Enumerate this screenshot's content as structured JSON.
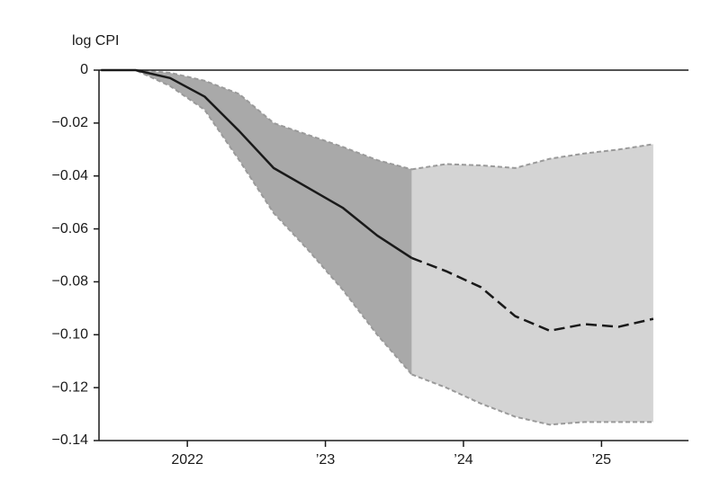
{
  "chart_data": {
    "type": "line",
    "y_label": "log CPI",
    "x": [
      2021.375,
      2021.625,
      2021.875,
      2022.125,
      2022.375,
      2022.625,
      2022.875,
      2023.125,
      2023.375,
      2023.625,
      2023.875,
      2024.125,
      2024.375,
      2024.625,
      2024.875,
      2025.125,
      2025.375
    ],
    "series": [
      {
        "color": "#1a1a1a",
        "dash": false,
        "values": [
          0,
          0,
          -0.003,
          -0.01,
          -0.023,
          -0.037,
          -0.0445,
          -0.052,
          -0.0625,
          -0.071,
          null,
          null,
          null,
          null,
          null,
          null,
          null
        ]
      },
      {
        "color": "#1a1a1a",
        "dash": true,
        "values": [
          null,
          null,
          null,
          null,
          null,
          null,
          null,
          null,
          null,
          -0.071,
          -0.076,
          -0.082,
          -0.093,
          -0.0985,
          -0.096,
          -0.097,
          -0.094
        ]
      }
    ],
    "bands": [
      {
        "color": "#a9a9a9",
        "edge_color": "#9a9a9a",
        "upper": [
          0,
          0,
          -0.001,
          -0.004,
          -0.009,
          -0.02,
          -0.0245,
          -0.029,
          -0.034,
          -0.0375,
          null,
          null,
          null,
          null,
          null,
          null,
          null
        ],
        "lower": [
          0,
          0,
          -0.006,
          -0.015,
          -0.034,
          -0.054,
          -0.068,
          -0.083,
          -0.1,
          -0.115,
          null,
          null,
          null,
          null,
          null,
          null,
          null
        ]
      },
      {
        "color": "#d4d4d4",
        "edge_color": "#9a9a9a",
        "upper": [
          null,
          null,
          null,
          null,
          null,
          null,
          null,
          null,
          null,
          -0.0375,
          -0.0355,
          -0.036,
          -0.037,
          -0.0335,
          -0.0315,
          -0.03,
          -0.028
        ],
        "lower": [
          null,
          null,
          null,
          null,
          null,
          null,
          null,
          null,
          null,
          -0.115,
          -0.12,
          -0.126,
          -0.131,
          -0.134,
          -0.133,
          -0.133,
          -0.133
        ]
      }
    ],
    "xlim": [
      2021.36,
      2025.63
    ],
    "xticks": [
      {
        "value": 2022,
        "label": "2022"
      },
      {
        "value": 2023,
        "label": "’23"
      },
      {
        "value": 2024,
        "label": "’24"
      },
      {
        "value": 2025,
        "label": "’25"
      }
    ],
    "ylim": [
      -0.14,
      0
    ],
    "yticks": [
      0,
      {
        "value": -0.02,
        "label": "−0.02"
      },
      {
        "value": -0.04,
        "label": "−0.04"
      },
      {
        "value": -0.06,
        "label": "−0.06"
      },
      {
        "value": -0.08,
        "label": "−0.08"
      },
      {
        "value": -0.1,
        "label": "−0.10"
      },
      {
        "value": -0.12,
        "label": "−0.12"
      },
      {
        "value": -0.14,
        "label": "−0.14"
      }
    ],
    "grid": false
  }
}
